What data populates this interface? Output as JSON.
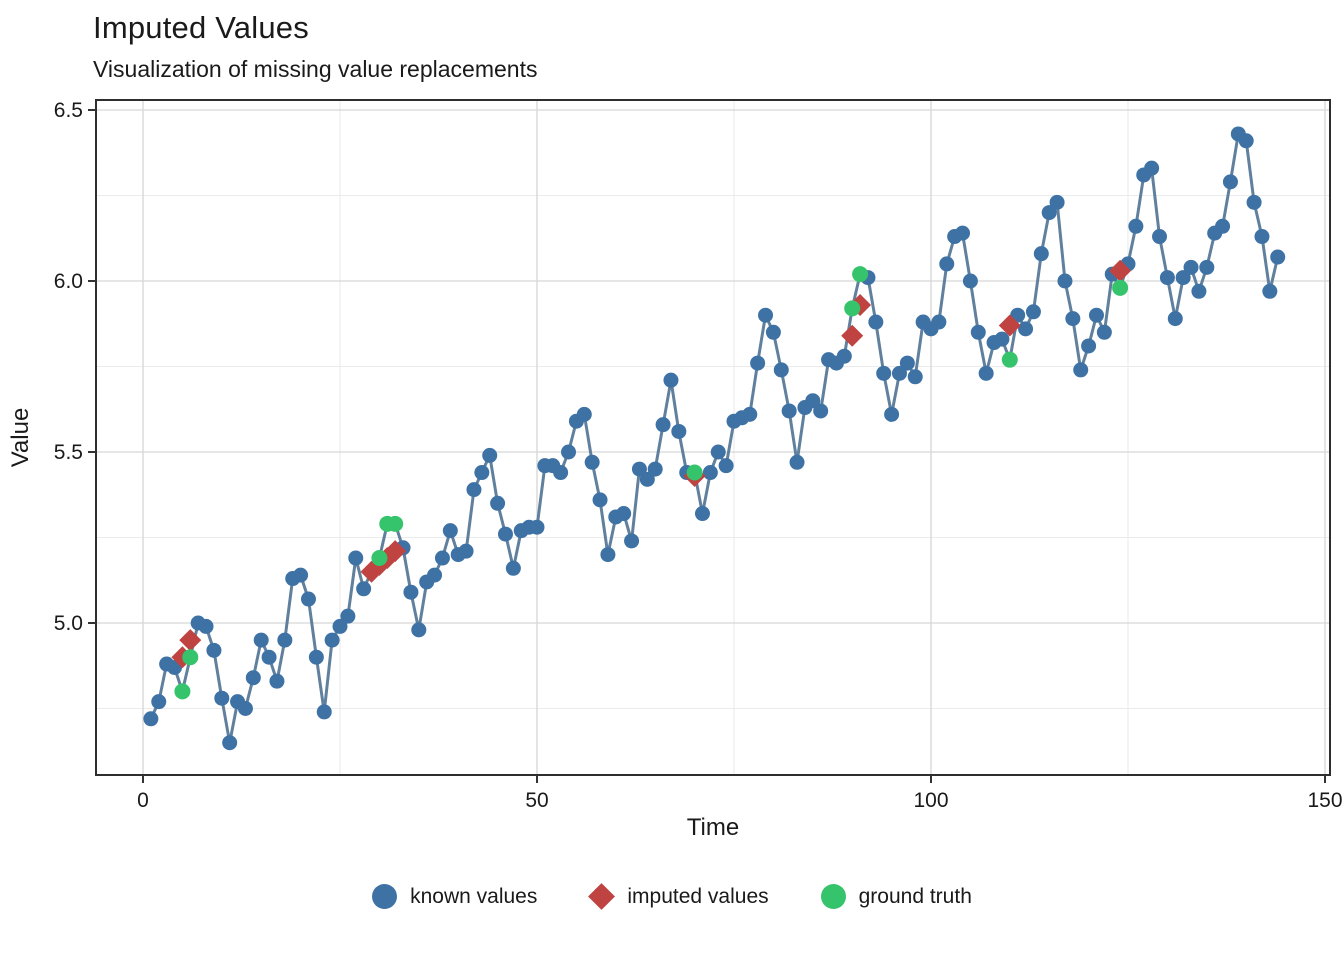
{
  "title": "Imputed Values",
  "subtitle": "Visualization of missing value replacements",
  "colors": {
    "known": "#3e72a5",
    "imputed": "#bf4341",
    "truth": "#35c46c",
    "line": "#60809d",
    "grid_major": "#d6d6d6",
    "grid_minor": "#ebebeb",
    "panel_border": "#2e2e2e",
    "tick": "#333333",
    "text": "#1a1a1a"
  },
  "chart_data": {
    "type": "line",
    "title": "Imputed Values",
    "subtitle": "Visualization of missing value replacements",
    "xlabel": "Time",
    "ylabel": "Value",
    "xlim": [
      -6,
      150.6
    ],
    "ylim": [
      4.556,
      6.53
    ],
    "grid": "on",
    "legend_position": "bottom",
    "x_ticks": {
      "values": [
        0,
        50,
        100,
        150
      ],
      "labels": [
        "0",
        "50",
        "100",
        "150"
      ]
    },
    "y_ticks": {
      "values": [
        5.0,
        5.5,
        6.0,
        6.5
      ],
      "labels": [
        "5.0",
        "5.5",
        "6.0",
        "6.5"
      ]
    },
    "x_minor_ticks": [
      25,
      75,
      125
    ],
    "y_minor_ticks": [
      4.75,
      5.25,
      5.75,
      6.25
    ],
    "series": {
      "known": {
        "x": [
          1,
          2,
          3,
          4,
          7,
          8,
          9,
          10,
          11,
          12,
          13,
          14,
          15,
          16,
          17,
          18,
          19,
          20,
          21,
          22,
          23,
          24,
          25,
          26,
          27,
          28,
          33,
          34,
          35,
          36,
          37,
          38,
          39,
          40,
          41,
          42,
          43,
          44,
          45,
          46,
          47,
          48,
          49,
          50,
          51,
          52,
          53,
          54,
          55,
          56,
          57,
          58,
          59,
          60,
          61,
          62,
          63,
          64,
          65,
          66,
          67,
          68,
          69,
          71,
          72,
          73,
          74,
          75,
          76,
          77,
          78,
          79,
          80,
          81,
          82,
          83,
          84,
          85,
          86,
          87,
          88,
          89,
          92,
          93,
          94,
          95,
          96,
          97,
          98,
          99,
          100,
          101,
          102,
          103,
          104,
          105,
          106,
          107,
          108,
          109,
          111,
          112,
          113,
          114,
          115,
          116,
          117,
          118,
          119,
          120,
          121,
          122,
          123,
          125,
          126,
          127,
          128,
          129,
          130,
          131,
          132,
          133,
          134,
          135,
          136,
          137,
          138,
          139,
          140,
          141,
          142,
          143,
          144
        ],
        "y": [
          4.72,
          4.77,
          4.88,
          4.87,
          5.0,
          4.99,
          4.92,
          4.78,
          4.65,
          4.77,
          4.75,
          4.84,
          4.95,
          4.9,
          4.83,
          4.95,
          5.13,
          5.14,
          5.07,
          4.9,
          4.74,
          4.95,
          4.99,
          5.02,
          5.19,
          5.1,
          5.22,
          5.09,
          4.98,
          5.12,
          5.14,
          5.19,
          5.27,
          5.2,
          5.21,
          5.39,
          5.44,
          5.49,
          5.35,
          5.26,
          5.16,
          5.27,
          5.28,
          5.28,
          5.46,
          5.46,
          5.44,
          5.5,
          5.59,
          5.61,
          5.47,
          5.36,
          5.2,
          5.31,
          5.32,
          5.24,
          5.45,
          5.42,
          5.45,
          5.58,
          5.71,
          5.56,
          5.44,
          5.32,
          5.44,
          5.5,
          5.46,
          5.59,
          5.6,
          5.61,
          5.76,
          5.9,
          5.85,
          5.74,
          5.62,
          5.47,
          5.63,
          5.65,
          5.62,
          5.77,
          5.76,
          5.78,
          6.01,
          5.88,
          5.73,
          5.61,
          5.73,
          5.76,
          5.72,
          5.88,
          5.86,
          5.88,
          6.05,
          6.13,
          6.14,
          6.0,
          5.85,
          5.73,
          5.82,
          5.83,
          5.9,
          5.86,
          5.91,
          6.08,
          6.2,
          6.23,
          6.0,
          5.89,
          5.74,
          5.81,
          5.9,
          5.85,
          6.02,
          6.05,
          6.16,
          6.31,
          6.33,
          6.13,
          6.01,
          5.89,
          6.01,
          6.04,
          5.97,
          6.04,
          6.14,
          6.16,
          6.29,
          6.43,
          6.41,
          6.23,
          6.13,
          5.97,
          6.07
        ]
      },
      "imputed": {
        "x": [
          5,
          6,
          29,
          30,
          31,
          32,
          70,
          90,
          91,
          110,
          124
        ],
        "y": [
          4.9,
          4.95,
          5.15,
          5.17,
          5.19,
          5.21,
          5.43,
          5.84,
          5.93,
          5.87,
          6.03
        ]
      },
      "ground_truth": {
        "x": [
          5,
          6,
          30,
          31,
          32,
          70,
          90,
          91,
          110,
          124
        ],
        "y": [
          4.8,
          4.9,
          5.19,
          5.29,
          5.29,
          5.44,
          5.92,
          6.02,
          5.77,
          5.98
        ]
      }
    },
    "legend": [
      {
        "label": "known values",
        "marker": "circle",
        "color": "#3e72a5"
      },
      {
        "label": "imputed values",
        "marker": "diamond",
        "color": "#bf4341"
      },
      {
        "label": "ground truth",
        "marker": "circle",
        "color": "#35c46c"
      }
    ]
  }
}
